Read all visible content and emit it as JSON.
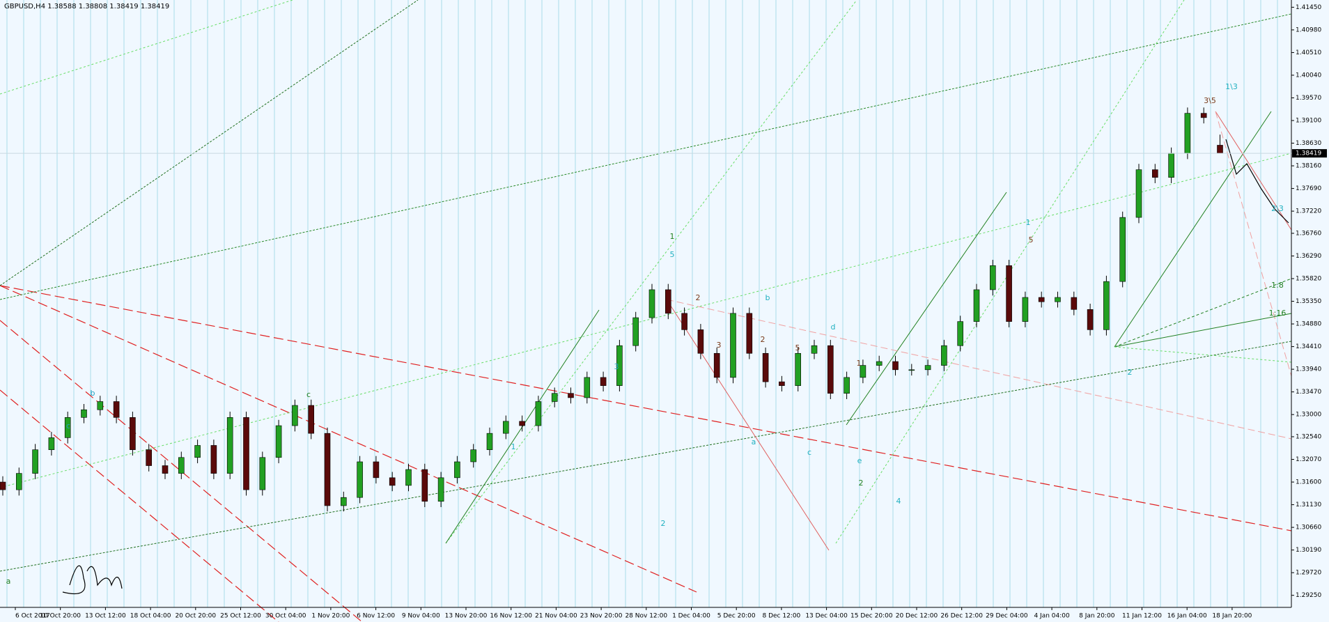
{
  "chart_data": {
    "type": "candlestick",
    "title": "GBPUSD,H4  1.38588 1.38808 1.38419 1.38419",
    "up_color": "#22a022",
    "down_color": "#5a0a0a",
    "ylim": [
      1.29,
      1.416
    ],
    "yticks": [
      {
        "value": 1.4145,
        "label": "1.41450"
      },
      {
        "value": 1.4098,
        "label": "1.40980"
      },
      {
        "value": 1.4051,
        "label": "1.40510"
      },
      {
        "value": 1.4004,
        "label": "1.40040"
      },
      {
        "value": 1.3957,
        "label": "1.39570"
      },
      {
        "value": 1.391,
        "label": "1.39100"
      },
      {
        "value": 1.3863,
        "label": "1.38630"
      },
      {
        "value": 1.3816,
        "label": "1.38160"
      },
      {
        "value": 1.3769,
        "label": "1.37690"
      },
      {
        "value": 1.3722,
        "label": "1.37220"
      },
      {
        "value": 1.3676,
        "label": "1.36760"
      },
      {
        "value": 1.3629,
        "label": "1.36290"
      },
      {
        "value": 1.3582,
        "label": "1.35820"
      },
      {
        "value": 1.3535,
        "label": "1.35350"
      },
      {
        "value": 1.3488,
        "label": "1.34880"
      },
      {
        "value": 1.3441,
        "label": "1.34410"
      },
      {
        "value": 1.3394,
        "label": "1.33940"
      },
      {
        "value": 1.3347,
        "label": "1.33470"
      },
      {
        "value": 1.33,
        "label": "1.33000"
      },
      {
        "value": 1.3254,
        "label": "1.32540"
      },
      {
        "value": 1.3207,
        "label": "1.32070"
      },
      {
        "value": 1.316,
        "label": "1.31600"
      },
      {
        "value": 1.3113,
        "label": "1.31130"
      },
      {
        "value": 1.3066,
        "label": "1.30660"
      },
      {
        "value": 1.3019,
        "label": "1.30190"
      },
      {
        "value": 1.2972,
        "label": "1.29720"
      },
      {
        "value": 1.2925,
        "label": "1.29250"
      }
    ],
    "x_labels": [
      "6 Oct 2017",
      "10 Oct 20:00",
      "13 Oct 12:00",
      "18 Oct 04:00",
      "20 Oct 20:00",
      "25 Oct 12:00",
      "30 Oct 04:00",
      "1 Nov 20:00",
      "6 Nov 12:00",
      "9 Nov 04:00",
      "13 Nov 20:00",
      "16 Nov 12:00",
      "21 Nov 04:00",
      "23 Nov 20:00",
      "28 Nov 12:00",
      "1 Dec 04:00",
      "5 Dec 20:00",
      "8 Dec 12:00",
      "13 Dec 04:00",
      "15 Dec 20:00",
      "20 Dec 12:00",
      "26 Dec 12:00",
      "29 Dec 04:00",
      "4 Jan 04:00",
      "8 Jan 20:00",
      "11 Jan 12:00",
      "16 Jan 04:00",
      "18 Jan 20:00"
    ],
    "open": [
      1.316,
      1.3144,
      1.3178,
      1.3227,
      1.3252,
      1.3294,
      1.331,
      1.3327,
      1.3294,
      1.3227,
      1.3194,
      1.3178,
      1.3211,
      1.3236,
      1.3178,
      1.3294,
      1.3144,
      1.3211,
      1.3277,
      1.3319,
      1.3261,
      1.3111,
      1.3128,
      1.3202,
      1.3169,
      1.3153,
      1.3186,
      1.312,
      1.3169,
      1.3202,
      1.3227,
      1.3261,
      1.3286,
      1.3277,
      1.3327,
      1.3344,
      1.3335,
      1.3377,
      1.336,
      1.3443,
      1.3501,
      1.3559,
      1.351,
      1.3476,
      1.3427,
      1.3377,
      1.351,
      1.3427,
      1.3368,
      1.336,
      1.3427,
      1.3443,
      1.3344,
      1.3377,
      1.3402,
      1.341,
      1.3393,
      1.3393,
      1.3402,
      1.3443,
      1.3493,
      1.3559,
      1.3609,
      1.3493,
      1.3543,
      1.3534,
      1.3543,
      1.3518,
      1.3476,
      1.3576,
      1.3709,
      1.3808,
      1.3792,
      1.3842,
      1.3925,
      1.38588
    ],
    "high": [
      1.3172,
      1.319,
      1.3239,
      1.3264,
      1.3306,
      1.3322,
      1.3339,
      1.3339,
      1.3306,
      1.3239,
      1.3206,
      1.3223,
      1.3248,
      1.3248,
      1.3306,
      1.3306,
      1.3223,
      1.3289,
      1.3331,
      1.3331,
      1.3273,
      1.314,
      1.3214,
      1.3214,
      1.3181,
      1.3198,
      1.3198,
      1.3181,
      1.3214,
      1.3239,
      1.3273,
      1.3298,
      1.3298,
      1.3339,
      1.3356,
      1.3356,
      1.3389,
      1.3389,
      1.3455,
      1.3513,
      1.3571,
      1.3571,
      1.3522,
      1.3488,
      1.3439,
      1.3522,
      1.3522,
      1.3439,
      1.338,
      1.3439,
      1.3455,
      1.3455,
      1.3389,
      1.3414,
      1.3422,
      1.3422,
      1.3405,
      1.3414,
      1.3455,
      1.3505,
      1.3571,
      1.3621,
      1.3621,
      1.3555,
      1.3555,
      1.3555,
      1.3555,
      1.353,
      1.3588,
      1.3721,
      1.382,
      1.382,
      1.3854,
      1.3937,
      1.3937,
      1.38808
    ],
    "low": [
      1.3132,
      1.3132,
      1.3166,
      1.3215,
      1.324,
      1.3282,
      1.3298,
      1.3282,
      1.3215,
      1.3182,
      1.3166,
      1.3166,
      1.3199,
      1.3166,
      1.3166,
      1.3132,
      1.3132,
      1.3199,
      1.3265,
      1.3249,
      1.3099,
      1.3099,
      1.3116,
      1.3157,
      1.3141,
      1.3141,
      1.3108,
      1.3108,
      1.3157,
      1.319,
      1.3215,
      1.3249,
      1.3265,
      1.3265,
      1.3315,
      1.3323,
      1.3323,
      1.3348,
      1.3348,
      1.3431,
      1.3489,
      1.3498,
      1.3464,
      1.3415,
      1.3365,
      1.3365,
      1.3415,
      1.3356,
      1.3348,
      1.3348,
      1.3415,
      1.3332,
      1.3332,
      1.3365,
      1.339,
      1.3381,
      1.3381,
      1.3381,
      1.339,
      1.3431,
      1.3481,
      1.3547,
      1.3481,
      1.3481,
      1.3522,
      1.3522,
      1.3506,
      1.3464,
      1.3464,
      1.3564,
      1.3697,
      1.378,
      1.378,
      1.383,
      1.3904,
      1.38419
    ],
    "close": [
      1.3144,
      1.3178,
      1.3227,
      1.3252,
      1.3294,
      1.331,
      1.3327,
      1.3294,
      1.3227,
      1.3194,
      1.3178,
      1.3211,
      1.3236,
      1.3178,
      1.3294,
      1.3144,
      1.3211,
      1.3277,
      1.3319,
      1.3261,
      1.3111,
      1.3128,
      1.3202,
      1.3169,
      1.3153,
      1.3186,
      1.312,
      1.3169,
      1.3202,
      1.3227,
      1.3261,
      1.3286,
      1.3277,
      1.3327,
      1.3344,
      1.3335,
      1.3377,
      1.336,
      1.3443,
      1.3501,
      1.3559,
      1.351,
      1.3476,
      1.3427,
      1.3377,
      1.351,
      1.3427,
      1.3368,
      1.336,
      1.3427,
      1.3443,
      1.3344,
      1.3377,
      1.3402,
      1.341,
      1.3393,
      1.3393,
      1.3402,
      1.3443,
      1.3493,
      1.3559,
      1.3609,
      1.3493,
      1.3543,
      1.3534,
      1.3543,
      1.3518,
      1.3476,
      1.3576,
      1.3709,
      1.3808,
      1.3792,
      1.3842,
      1.3925,
      1.3916,
      1.38419
    ],
    "current_price_label": "1.38419",
    "annotations": [
      "a",
      "c",
      "b",
      "c",
      "1",
      "3",
      "2",
      "5",
      "1",
      "2",
      "4",
      "3",
      "1",
      "5",
      "2",
      "a",
      "b",
      "c",
      "e",
      "2",
      "1",
      "5",
      "2",
      "1\\3",
      "3\\5",
      "2\\3",
      "1:8",
      "1:16",
      "d"
    ]
  }
}
